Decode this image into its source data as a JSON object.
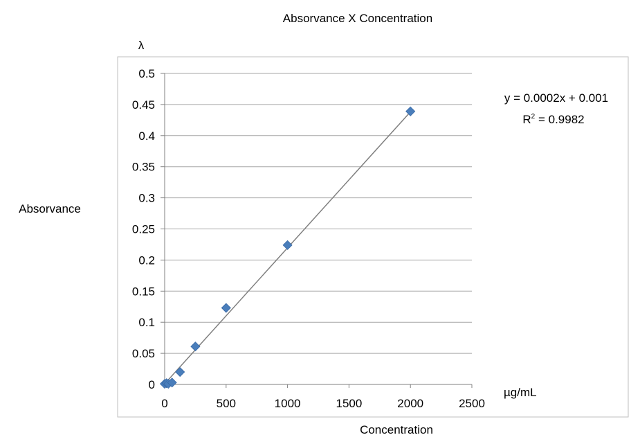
{
  "chart_data": {
    "type": "scatter",
    "title": "Absorvance X Concentration",
    "ylabel": "Absorvance",
    "yunit": "λ",
    "xlabel": "Concentration",
    "xunit": "µg/mL",
    "xlim": [
      0,
      2500
    ],
    "ylim": [
      0,
      0.5
    ],
    "x_ticks": [
      "0",
      "500",
      "1000",
      "1500",
      "2000",
      "2500"
    ],
    "y_ticks": [
      "0",
      "0.05",
      "0.1",
      "0.15",
      "0.2",
      "0.25",
      "0.3",
      "0.35",
      "0.4",
      "0.45",
      "0.5"
    ],
    "grid": "horizontal",
    "marker_color": "#4a7ebb",
    "series": [
      {
        "x": [
          0,
          15,
          30,
          60,
          125,
          250,
          500,
          1000,
          2000
        ],
        "y": [
          0.001,
          0.002,
          0.001,
          0.003,
          0.02,
          0.061,
          0.123,
          0.224,
          0.439
        ]
      }
    ],
    "trendline": {
      "slope": 0.0002,
      "intercept": 0.001,
      "equation": "y = 0.0002x + 0.001",
      "r2_label": "R",
      "r2_sup": "2",
      "r2_value": " = 0.9982"
    }
  }
}
